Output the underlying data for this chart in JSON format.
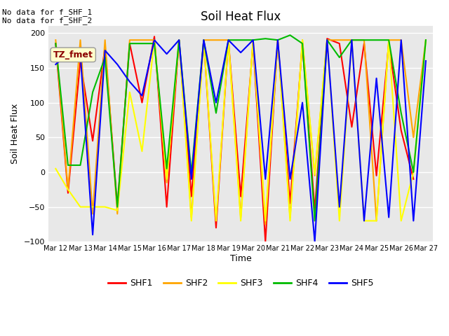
{
  "title": "Soil Heat Flux",
  "ylabel": "Soil Heat Flux",
  "xlabel": "Time",
  "ylim": [
    -100,
    210
  ],
  "yticks": [
    -100,
    -50,
    0,
    50,
    100,
    150,
    200
  ],
  "annotation_text": "No data for f_SHF_1\nNo data for f_SHF_2",
  "legend_label": "TZ_fmet",
  "x_tick_days": [
    12,
    13,
    14,
    15,
    16,
    17,
    18,
    19,
    20,
    21,
    22,
    23,
    24,
    25,
    26,
    27
  ],
  "x_tick_labels": [
    "Mar 12",
    "Mar 13",
    "Mar 14",
    "Mar 15",
    "Mar 16",
    "Mar 17",
    "Mar 18",
    "Mar 19",
    "Mar 20",
    "Mar 21",
    "Mar 22",
    "Mar 23",
    "Mar 24",
    "Mar 25",
    "Mar 26",
    "Mar 27"
  ],
  "series": {
    "SHF1": {
      "color": "#FF0000",
      "t": [
        12.0,
        12.5,
        13.0,
        13.5,
        14.0,
        14.5,
        15.0,
        15.5,
        16.0,
        16.5,
        17.0,
        17.5,
        18.0,
        18.5,
        19.0,
        19.5,
        20.0,
        20.5,
        21.0,
        21.5,
        22.0,
        22.5,
        23.0,
        23.5,
        24.0,
        24.5,
        25.0,
        25.5,
        26.0,
        26.5
      ],
      "y": [
        185,
        -30,
        160,
        45,
        180,
        -50,
        185,
        100,
        195,
        -50,
        190,
        -35,
        190,
        -80,
        190,
        -35,
        185,
        -100,
        190,
        -45,
        185,
        -55,
        192,
        185,
        65,
        185,
        -5,
        185,
        60,
        -10
      ]
    },
    "SHF2": {
      "color": "#FFA500",
      "t": [
        12.0,
        12.5,
        13.0,
        13.5,
        14.0,
        14.5,
        15.0,
        15.5,
        16.0,
        16.5,
        17.0,
        17.5,
        18.0,
        18.5,
        19.0,
        19.5,
        20.0,
        20.5,
        21.0,
        21.5,
        22.0,
        22.5,
        23.0,
        23.5,
        24.0,
        24.5,
        25.0,
        25.5,
        26.0,
        26.5,
        27.0
      ],
      "y": [
        190,
        -25,
        190,
        -60,
        190,
        -60,
        190,
        190,
        190,
        -15,
        190,
        -65,
        190,
        190,
        190,
        -65,
        190,
        -75,
        190,
        -65,
        190,
        -5,
        190,
        190,
        190,
        190,
        -70,
        190,
        190,
        50,
        190
      ]
    },
    "SHF3": {
      "color": "#FFFF00",
      "t": [
        12.0,
        12.5,
        13.0,
        13.5,
        14.0,
        14.5,
        15.0,
        15.5,
        16.0,
        16.5,
        17.0,
        17.5,
        18.0,
        18.5,
        19.0,
        19.5,
        20.0,
        20.5,
        21.0,
        21.5,
        22.0,
        22.5,
        23.0,
        23.5,
        24.0,
        24.5,
        25.0,
        25.5,
        26.0,
        26.5,
        27.0
      ],
      "y": [
        5,
        -25,
        -50,
        -50,
        -50,
        -55,
        115,
        30,
        190,
        -10,
        190,
        -70,
        190,
        -70,
        190,
        -70,
        190,
        -70,
        190,
        -70,
        190,
        -3,
        190,
        -70,
        190,
        -70,
        -70,
        190,
        -70,
        0,
        190
      ]
    },
    "SHF4": {
      "color": "#00BB00",
      "t": [
        12.0,
        12.5,
        13.0,
        13.5,
        14.0,
        14.5,
        15.0,
        15.5,
        16.0,
        16.5,
        17.0,
        17.5,
        18.0,
        18.5,
        19.0,
        19.5,
        20.0,
        20.5,
        21.0,
        21.5,
        22.0,
        22.5,
        23.0,
        23.5,
        24.0,
        24.5,
        25.0,
        25.5,
        26.0,
        26.5,
        27.0
      ],
      "y": [
        185,
        10,
        10,
        115,
        165,
        -50,
        185,
        185,
        185,
        5,
        190,
        -2,
        190,
        85,
        190,
        190,
        190,
        192,
        190,
        197,
        185,
        -70,
        190,
        165,
        190,
        190,
        190,
        190,
        85,
        0,
        190
      ]
    },
    "SHF5": {
      "color": "#0000FF",
      "t": [
        12.0,
        12.5,
        13.0,
        13.5,
        14.0,
        14.5,
        15.0,
        15.5,
        16.0,
        16.5,
        17.0,
        17.5,
        18.0,
        18.5,
        19.0,
        19.5,
        20.0,
        20.5,
        21.0,
        21.5,
        22.0,
        22.5,
        23.0,
        23.5,
        24.0,
        24.5,
        25.0,
        25.5,
        26.0,
        26.5,
        27.0
      ],
      "y": [
        155,
        170,
        170,
        -90,
        175,
        155,
        130,
        110,
        190,
        170,
        190,
        -10,
        190,
        100,
        190,
        172,
        190,
        -10,
        190,
        -10,
        100,
        -100,
        190,
        -50,
        190,
        -70,
        135,
        -65,
        190,
        -70,
        160
      ]
    }
  },
  "plot_bg": "#E8E8E8",
  "grid_color": "white",
  "linewidth": 1.5
}
